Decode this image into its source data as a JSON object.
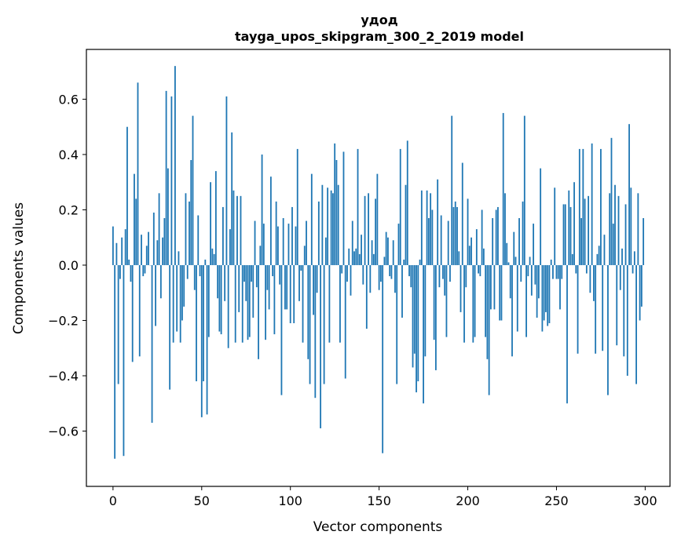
{
  "chart_data": {
    "type": "bar",
    "title": "удод",
    "subtitle": "tayga_upos_skipgram_300_2_2019 model",
    "xlabel": "Vector components",
    "ylabel": "Components values",
    "xlim": [
      -15,
      314
    ],
    "ylim": [
      -0.8,
      0.78
    ],
    "x_ticks": [
      0,
      50,
      100,
      150,
      200,
      250,
      300
    ],
    "y_ticks": [
      -0.6,
      -0.4,
      -0.2,
      0.0,
      0.2,
      0.4,
      0.6
    ],
    "y_tick_labels": [
      "−0.6",
      "−0.4",
      "−0.2",
      "0.0",
      "0.2",
      "0.4",
      "0.6"
    ],
    "bar_color": "#1f77b4",
    "grid": false,
    "values": [
      0.14,
      -0.7,
      0.08,
      -0.43,
      -0.05,
      0.1,
      -0.69,
      0.13,
      0.5,
      0.02,
      -0.06,
      -0.35,
      0.33,
      0.24,
      0.66,
      -0.33,
      0.11,
      -0.04,
      -0.03,
      0.07,
      0.12,
      0.0,
      -0.57,
      0.19,
      -0.22,
      0.09,
      0.26,
      -0.12,
      0.1,
      0.17,
      0.63,
      0.35,
      -0.45,
      0.61,
      -0.28,
      0.72,
      -0.24,
      0.05,
      -0.28,
      -0.2,
      -0.15,
      0.26,
      -0.05,
      0.23,
      0.38,
      0.54,
      -0.09,
      -0.42,
      0.18,
      -0.04,
      -0.55,
      -0.42,
      0.02,
      -0.54,
      -0.26,
      0.3,
      0.06,
      0.04,
      0.34,
      -0.12,
      -0.24,
      -0.25,
      0.21,
      -0.13,
      0.61,
      -0.3,
      0.13,
      0.48,
      0.27,
      -0.28,
      0.25,
      -0.17,
      0.25,
      -0.28,
      -0.06,
      -0.13,
      -0.27,
      -0.26,
      -0.06,
      -0.19,
      0.16,
      -0.08,
      -0.34,
      0.07,
      0.4,
      0.15,
      -0.27,
      -0.09,
      -0.16,
      0.32,
      -0.04,
      -0.25,
      0.23,
      0.14,
      -0.07,
      -0.47,
      0.17,
      -0.16,
      -0.16,
      0.15,
      -0.21,
      0.21,
      -0.21,
      0.14,
      0.42,
      -0.13,
      -0.02,
      -0.28,
      0.07,
      0.16,
      -0.34,
      -0.43,
      0.33,
      -0.18,
      -0.48,
      -0.1,
      0.23,
      -0.59,
      0.29,
      -0.43,
      0.1,
      0.28,
      -0.28,
      0.27,
      0.26,
      0.44,
      0.38,
      0.29,
      -0.28,
      -0.03,
      0.41,
      -0.41,
      -0.06,
      0.06,
      -0.11,
      0.16,
      0.05,
      0.06,
      0.42,
      0.04,
      0.11,
      -0.07,
      0.25,
      -0.23,
      0.26,
      -0.1,
      0.09,
      0.04,
      0.24,
      0.33,
      -0.09,
      -0.06,
      -0.68,
      0.03,
      0.12,
      0.1,
      -0.04,
      -0.05,
      0.09,
      -0.1,
      -0.43,
      0.15,
      0.42,
      -0.19,
      0.02,
      0.29,
      0.45,
      -0.04,
      -0.08,
      -0.37,
      -0.32,
      -0.46,
      -0.42,
      0.02,
      0.27,
      -0.5,
      -0.33,
      0.27,
      0.17,
      0.26,
      0.2,
      -0.27,
      -0.38,
      0.31,
      -0.08,
      0.18,
      -0.05,
      -0.11,
      -0.26,
      0.16,
      -0.06,
      0.54,
      0.21,
      0.23,
      0.21,
      0.05,
      -0.17,
      0.37,
      -0.28,
      -0.08,
      0.24,
      0.07,
      0.1,
      -0.28,
      -0.26,
      0.13,
      -0.03,
      -0.04,
      0.2,
      0.06,
      -0.26,
      -0.34,
      -0.47,
      -0.16,
      0.17,
      -0.16,
      0.2,
      0.21,
      -0.2,
      -0.2,
      0.55,
      0.26,
      0.08,
      0.01,
      -0.12,
      -0.33,
      0.12,
      0.03,
      -0.24,
      0.17,
      -0.06,
      0.23,
      0.54,
      -0.26,
      -0.04,
      0.03,
      -0.11,
      0.15,
      -0.07,
      -0.19,
      -0.12,
      0.35,
      -0.24,
      -0.2,
      -0.17,
      -0.22,
      -0.21,
      0.02,
      -0.05,
      0.28,
      -0.05,
      -0.05,
      -0.16,
      -0.05,
      0.22,
      0.22,
      -0.5,
      0.27,
      0.21,
      0.04,
      0.3,
      -0.03,
      -0.32,
      0.42,
      0.17,
      0.42,
      0.24,
      -0.03,
      0.25,
      -0.1,
      0.44,
      -0.13,
      -0.32,
      0.04,
      0.07,
      0.42,
      -0.31,
      0.11,
      0.0,
      -0.47,
      0.26,
      0.46,
      0.15,
      0.29,
      -0.29,
      0.25,
      -0.09,
      0.06,
      -0.33,
      0.22,
      -0.4,
      0.51,
      0.28,
      -0.03,
      0.05,
      -0.43,
      0.26,
      -0.2,
      -0.15,
      0.17
    ]
  }
}
